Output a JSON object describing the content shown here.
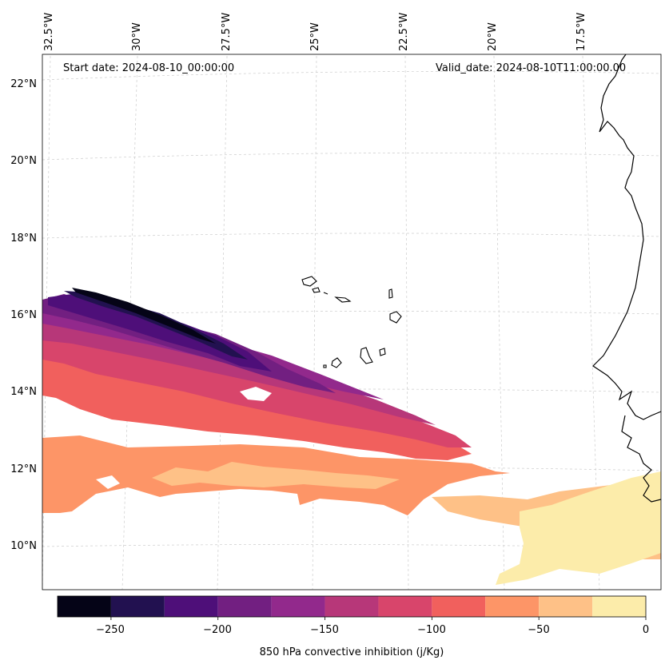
{
  "annotations": {
    "start_date": "Start date: 2024-08-10_00:00:00",
    "valid_date": "Valid_date: 2024-08-10T11:00:00.00"
  },
  "axes": {
    "lat_labels": [
      "22°N",
      "20°N",
      "18°N",
      "16°N",
      "14°N",
      "12°N",
      "10°N"
    ],
    "lon_labels": [
      "32.5°W",
      "30°W",
      "27.5°W",
      "25°W",
      "22.5°W",
      "20°W",
      "17.5°W"
    ]
  },
  "colorbar": {
    "label": "850 hPa convective inhibition (j/Kg)",
    "range": [
      -275,
      0
    ],
    "levels": [
      -275,
      -250,
      -225,
      -200,
      -175,
      -150,
      -125,
      -100,
      -75,
      -50,
      -25,
      0
    ],
    "colors": [
      "#050417",
      "#221150",
      "#4e0f79",
      "#721f81",
      "#92298c",
      "#b73779",
      "#d8456b",
      "#f1605d",
      "#fd9567",
      "#fec187",
      "#fcecaa"
    ],
    "tick_values": [
      -250,
      -200,
      -150,
      -100,
      -50,
      0
    ],
    "tick_labels": [
      "−250",
      "−200",
      "−150",
      "−100",
      "−50",
      "0"
    ]
  },
  "chart_data": {
    "type": "heatmap",
    "title": "850 hPa convective inhibition (j/Kg)",
    "variable": "850 hPa convective inhibition",
    "units": "j/Kg",
    "lat_range": [
      9,
      22.8
    ],
    "lon_range": [
      -32.5,
      -16
    ],
    "colorbar_range": [
      -275,
      0
    ],
    "regions": [
      {
        "description": "strongest inhibition band",
        "lat": [
          15.6,
          16.7
        ],
        "lon": [
          -32.5,
          -27.0
        ],
        "value_range": [
          -275,
          -225
        ]
      },
      {
        "description": "purple band",
        "lat": [
          14,
          15.8
        ],
        "lon": [
          -32.5,
          -23.0
        ],
        "value_range": [
          -225,
          -150
        ]
      },
      {
        "description": "red-pink band",
        "lat": [
          12.5,
          14.5
        ],
        "lon": [
          -32.5,
          -19.5
        ],
        "value_range": [
          -150,
          -75
        ]
      },
      {
        "description": "orange patches",
        "lat": [
          10.8,
          13
        ],
        "lon": [
          -32.5,
          -19.5
        ],
        "value_range": [
          -75,
          -25
        ]
      },
      {
        "description": "pale yellow region",
        "lat": [
          9.3,
          12.3
        ],
        "lon": [
          -21.5,
          -16
        ],
        "value_range": [
          -25,
          0
        ]
      }
    ]
  }
}
